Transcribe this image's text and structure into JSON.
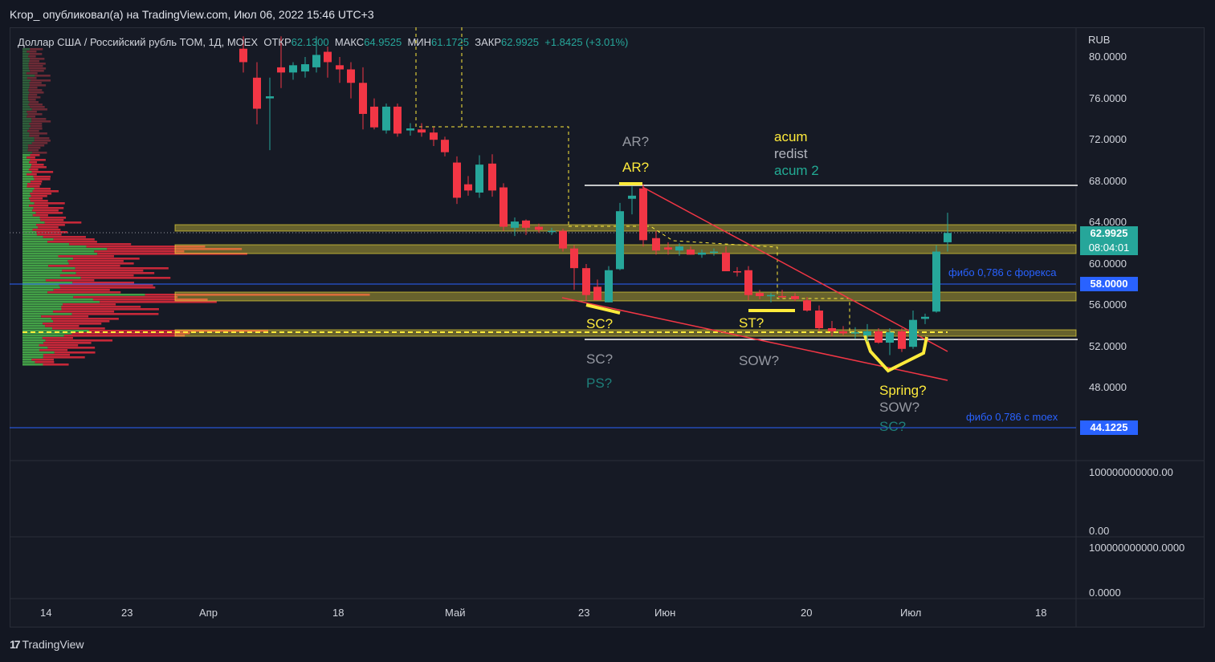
{
  "header": "Krop_ опубликовал(а) на TradingView.com, Июл 06, 2022 15:46 UTC+3",
  "symbol": {
    "name": "Доллар США / Российский рубль TOM, 1Д, MOEX",
    "open_label": "ОТКР",
    "open": "62.1300",
    "high_label": "МАКС",
    "high": "64.9525",
    "low_label": "МИН",
    "low": "61.1725",
    "close_label": "ЗАКР",
    "close": "62.9925",
    "change": "+1.8425 (+3.01%)"
  },
  "axis_right": {
    "currency": "RUB",
    "ticks": [
      "80.0000",
      "76.0000",
      "72.0000",
      "68.0000",
      "64.0000",
      "60.0000",
      "56.0000",
      "52.0000",
      "48.0000"
    ],
    "vol_ticks": [
      "100000000000.00",
      "0.00"
    ],
    "ind_ticks": [
      "100000000000.0000",
      "0.0000"
    ]
  },
  "price_tags": {
    "last": "62.9925",
    "countdown": "08:04:01",
    "fibo_forex": "58.0000",
    "fibo_moex": "44.1225"
  },
  "axis_bottom": [
    "14",
    "23",
    "Апр",
    "18",
    "Май",
    "23",
    "Июн",
    "20",
    "Июл",
    "18"
  ],
  "annotations": {
    "ar_gray": "AR?",
    "ar_yellow": "AR?",
    "acum": "acum",
    "redist": "redist",
    "acum2": "acum 2",
    "sc_yellow": "SC?",
    "sc_gray": "SC?",
    "ps": "PS?",
    "st": "ST?",
    "sow_gray": "SOW?",
    "spring": "Spring?",
    "sow2": "SOW?",
    "sc_teal": "SC?",
    "fibo_forex": "фибо 0,786 с форекса",
    "fibo_moex": "фибо 0,786 с moex"
  },
  "colors": {
    "up": "#26a69a",
    "down": "#f23645",
    "yellow": "#ffeb3b",
    "blue": "#2962ff",
    "bg": "#131722"
  },
  "footer": "TradingView"
}
